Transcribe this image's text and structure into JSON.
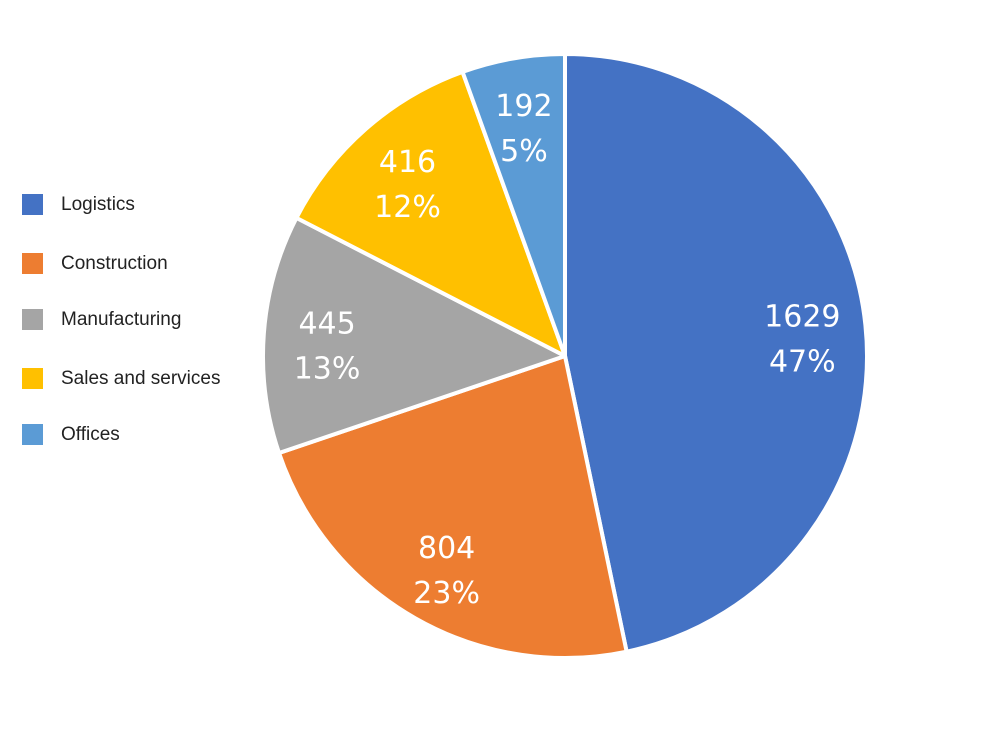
{
  "chart_data": {
    "type": "pie",
    "title": "",
    "start_angle_deg": 0,
    "direction": "clockwise",
    "slices": [
      {
        "label": "Logistics",
        "value": 1629,
        "percent": "47%",
        "color": "#4472C4"
      },
      {
        "label": "Construction",
        "value": 804,
        "percent": "23%",
        "color": "#ED7D31"
      },
      {
        "label": "Manufacturing",
        "value": 445,
        "percent": "13%",
        "color": "#A5A5A5"
      },
      {
        "label": "Sales and services",
        "value": 416,
        "percent": "12%",
        "color": "#FFC000"
      },
      {
        "label": "Offices",
        "value": 192,
        "percent": "5%",
        "color": "#5B9BD5"
      }
    ],
    "legend": {
      "position": "left",
      "entries": [
        "Logistics",
        "Construction",
        "Manufacturing",
        "Sales and services",
        "Offices"
      ]
    },
    "data_labels": {
      "show_value": true,
      "show_percent": true,
      "color": "#FFFFFF"
    }
  }
}
